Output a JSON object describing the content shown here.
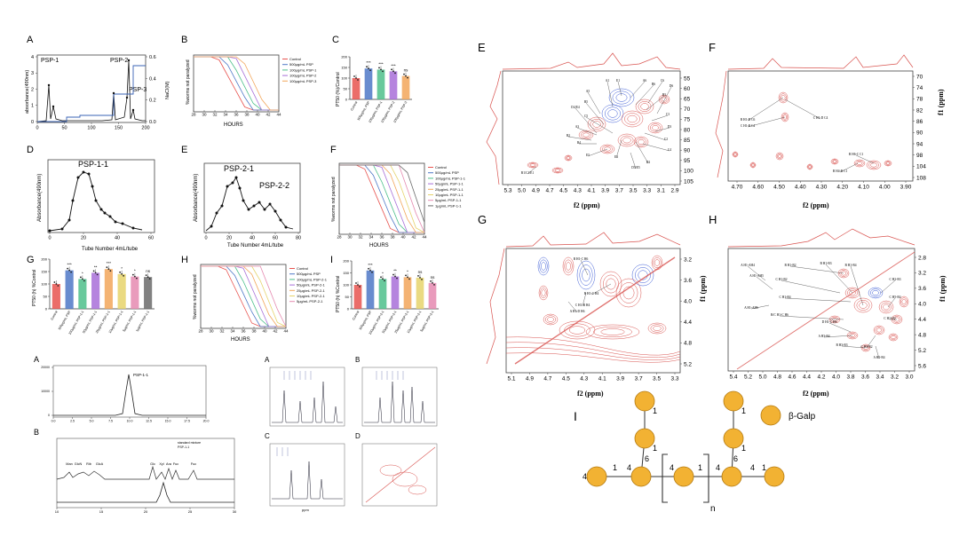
{
  "figure": {
    "colors": {
      "black": "#111111",
      "gray_axis": "#444444",
      "blue": "#3a63b5",
      "red_contour": "#d9534f",
      "blue_contour": "#3b5bd6",
      "gold_node": "#f2b233",
      "gold_stroke": "#b47a10",
      "bar_red": "#e8534f",
      "bar_blue": "#4f78c7",
      "bar_green": "#4dbf8b",
      "bar_purple": "#a86fd8",
      "bar_orange": "#f2a65a",
      "bar_yellow": "#e6d36b",
      "bar_pink": "#e58ab0"
    },
    "panel_A": {
      "label": "A",
      "peaks": [
        "PSP-1",
        "PSP-2",
        "PSP-3"
      ],
      "ylabel_left": "absorbance(490nm)",
      "ylabel_right": "NaCl(M)",
      "xticks": [
        "0",
        "50",
        "100",
        "150",
        "200"
      ],
      "yticks_left": [
        "0",
        "1",
        "2",
        "3",
        "4"
      ],
      "yticks_right": [
        "0.0",
        "0.2",
        "0.4",
        "0.6"
      ]
    },
    "panel_B": {
      "label": "B",
      "xlabel": "HOURS",
      "ylabel": "%worms not paralyzed",
      "legend": [
        "Control",
        "500μg/mL PSP",
        "100μg/mL PSP-1",
        "100μg/mL PSP-2",
        "100μg/mL PSP-3"
      ],
      "xticks": [
        "28",
        "30",
        "32",
        "34",
        "36",
        "38",
        "40",
        "42",
        "44"
      ]
    },
    "panel_C": {
      "label": "C",
      "ylabel": "PT50 (%)/Control",
      "categories": [
        "Control",
        "500μg/mL PSP",
        "100μg/mL PSP-1",
        "100μg/mL PSP-2",
        "100μg/mL PSP-3"
      ],
      "values": [
        100,
        145,
        140,
        132,
        110
      ],
      "sig": [
        "",
        "***",
        "***",
        "***",
        "ns"
      ],
      "yticks": [
        "0",
        "50",
        "100",
        "150",
        "200"
      ]
    },
    "panel_D": {
      "label": "D",
      "peak": "PSP-1-1",
      "xlabel": "Tube Number 4mL/tube",
      "ylabel": "Absorbance(490nm)",
      "xticks": [
        "0",
        "20",
        "40",
        "60"
      ]
    },
    "panel_E_small": {
      "label": "E",
      "peaks": [
        "PSP-2-1",
        "PSP-2-2"
      ],
      "xlabel": "Tube Number 4mL/tube",
      "ylabel": "Absorbance(490nm)",
      "xticks": [
        "0",
        "20",
        "40",
        "60",
        "80"
      ]
    },
    "panel_F_small": {
      "label": "F",
      "xlabel": "HOURS",
      "ylabel": "%worms not paralyzed",
      "legend": [
        "Control",
        "500μg/mL PSP",
        "100μg/mL PSP-1-1",
        "50μg/mL PSP-1-1",
        "25μg/mL PSP-1-1",
        "10μg/mL PSP-1-1",
        "5μg/mL PSP-1-1",
        "1μg/mL PSP-1-1"
      ],
      "xticks": [
        "28",
        "30",
        "32",
        "34",
        "36",
        "38",
        "40",
        "42",
        "44"
      ]
    },
    "panel_G": {
      "label": "G",
      "ylabel": "PT50 (h) %Control",
      "categories": [
        "Control",
        "500μg/mL PSP",
        "100μg/mL PSP-1-1",
        "50μg/mL PSP-1-1",
        "25μg/mL PSP-1-1",
        "10μg/mL PSP-1-1",
        "5μg/mL PSP-1-1",
        "1μg/mL PSP-1-1"
      ],
      "values": [
        100,
        155,
        120,
        145,
        160,
        140,
        130,
        128
      ],
      "sig": [
        "",
        "***",
        "*",
        "**",
        "***",
        "*",
        "*",
        "ns"
      ],
      "yticks": [
        "0",
        "50",
        "100",
        "150",
        "200"
      ]
    },
    "panel_H_small": {
      "label": "H",
      "xlabel": "HOURS",
      "ylabel": "%worms not paralyzed",
      "legend": [
        "Control",
        "500μg/mL PSP",
        "100μg/mL PSP-2-1",
        "50μg/mL PSP-2-1",
        "25μg/mL PSP-2-1",
        "10μg/mL PSP-2-1",
        "5μg/mL PSP-2-1"
      ],
      "xticks": [
        "28",
        "30",
        "32",
        "34",
        "36",
        "38",
        "40",
        "42",
        "44"
      ]
    },
    "panel_I_small": {
      "label": "I",
      "ylabel": "PT50 (h) %Control",
      "categories": [
        "Control",
        "500μg/mL PSP",
        "100μg/mL PSP-2-1",
        "50μg/mL PSP-2-1",
        "25μg/mL PSP-2-1",
        "10μg/mL PSP-2-1",
        "5μg/mL PSP-2-1"
      ],
      "values": [
        100,
        160,
        125,
        135,
        132,
        130,
        108
      ],
      "sig": [
        "",
        "***",
        "*",
        "**",
        "*",
        "ns",
        "ns"
      ],
      "yticks": [
        "0",
        "50",
        "100",
        "150",
        "200"
      ]
    },
    "hplc_A": {
      "label": "A",
      "peak": "PSP-1-1",
      "yticks": [
        "0",
        "10000",
        "20000"
      ],
      "xticks": [
        "0.0",
        "2.5",
        "5.0",
        "7.5",
        "10.0",
        "12.5",
        "15.0",
        "17.5",
        "20.0"
      ]
    },
    "hplc_B": {
      "label": "B",
      "legend": [
        "standard mixture",
        "PSP-1-1"
      ],
      "peaks": [
        "Man",
        "GlcN",
        "Rib",
        "GlcA",
        "Glc",
        "Xyl",
        "Ara",
        "Fuc",
        "Fuc"
      ],
      "xticks": [
        "10",
        "15",
        "20",
        "25",
        "30"
      ]
    },
    "nmr_small": {
      "labels": [
        "A",
        "B",
        "C",
        "D"
      ],
      "xlabel": "ppm"
    },
    "nmr_E": {
      "label": "E",
      "xaxis_title": "f2 (ppm)",
      "yaxis_title": "f1 (ppm)",
      "xticks": [
        "5.3",
        "5.0",
        "4.9",
        "4.7",
        "4.5",
        "4.3",
        "4.1",
        "3.9",
        "3.7",
        "3.5",
        "3.3",
        "3.1",
        "2.9"
      ],
      "yticks": [
        "55",
        "60",
        "65",
        "70",
        "75",
        "80",
        "85",
        "90",
        "95",
        "100",
        "105"
      ],
      "annotations": [
        "A6",
        "B6",
        "C6",
        "D6",
        "E1",
        "A5",
        "B5",
        "C5",
        "D4/E4",
        "A1",
        "B3",
        "C3",
        "D3",
        "E3",
        "C4",
        "A3",
        "B2",
        "C2",
        "D2",
        "E5",
        "B4",
        "D5/E5",
        "B1/C1/E1"
      ]
    },
    "nmr_F": {
      "label": "F",
      "xaxis_title": "f2 (ppm)",
      "yaxis_title": "f1 (ppm)",
      "xticks": [
        "4.70",
        "4.60",
        "4.50",
        "4.40",
        "4.30",
        "4.20",
        "4.10",
        "4.00",
        "3.90"
      ],
      "yticks": [
        "70",
        "74",
        "78",
        "82",
        "86",
        "90",
        "94",
        "98",
        "104",
        "108"
      ],
      "annotations": [
        "B H1-D C6",
        "C H1-D C4",
        "C H1-B C4",
        "B H6-C C1",
        "B H4-B C1"
      ]
    },
    "nmr_G": {
      "label": "G",
      "xaxis_title": "f2 (ppm)",
      "yaxis_title": "f1 (ppm)",
      "xticks": [
        "5.1",
        "4.9",
        "4.7",
        "4.5",
        "4.3",
        "4.1",
        "3.9",
        "3.7",
        "3.5",
        "3.3"
      ],
      "yticks": [
        "3.2",
        "3.6",
        "4.0",
        "4.4",
        "4.8",
        "5.2"
      ],
      "annotations": [
        "B H1-C H6",
        "B H1-C H4",
        "C H1-B H4",
        "A H1-D H6"
      ]
    },
    "nmr_H": {
      "label": "H",
      "xaxis_title": "f2 (ppm)",
      "yaxis_title": "f1 (ppm)",
      "xticks": [
        "5.4",
        "5.2",
        "5.0",
        "4.8",
        "4.6",
        "4.4",
        "4.2",
        "4.0",
        "3.8",
        "3.6",
        "3.4",
        "3.2",
        "3.0"
      ],
      "yticks": [
        "2.8",
        "3.2",
        "3.6",
        "4.0",
        "4.4",
        "4.8",
        "5.2",
        "5.6"
      ],
      "annotations": [
        "A H1-AH4",
        "A H1-AH5",
        "A H1-AH6",
        "B H1-B2",
        "B H1-B3",
        "B H1-B4",
        "C H1-B2",
        "C H1-B4",
        "B/C H1-C H6",
        "D H1-C H6",
        "A H3-B4",
        "B H3-B3",
        "C H3-B2",
        "C H2-B3",
        "C H5-B4",
        "C H2-H2",
        "A H2-B4"
      ]
    },
    "structure_I": {
      "label": "I",
      "legend": "β-Galp",
      "linkage_labels": [
        "4",
        "1",
        "4",
        "6",
        "1",
        "4",
        "1",
        "4",
        "6",
        "1",
        "4",
        "1",
        "1",
        "1"
      ],
      "repeat": "n"
    }
  }
}
